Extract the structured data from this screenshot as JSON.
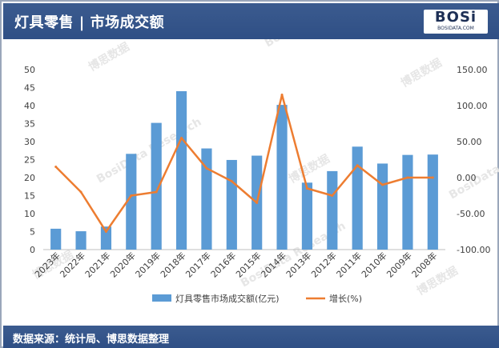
{
  "header": {
    "title": "灯具零售 | 市场成交额"
  },
  "logo": {
    "main": "BOSi",
    "sub": "BOSIDATA.COM"
  },
  "footer": {
    "source": "数据来源：统计局、博思数据整理"
  },
  "watermark": {
    "cn": "博思数据",
    "en": "BosiData Research"
  },
  "colors": {
    "bar": "#5b9bd5",
    "line": "#ed7d31",
    "header": "#2f4f85"
  },
  "chart_data": {
    "type": "bar",
    "categories": [
      "2023年",
      "2022年",
      "2021年",
      "2020年",
      "2019年",
      "2018年",
      "2017年",
      "2016年",
      "2015年",
      "2014年",
      "2013年",
      "2012年",
      "2011年",
      "2010年",
      "2009年",
      "2008年"
    ],
    "series": [
      {
        "name": "灯具零售市场成交额(亿元)",
        "type": "bar",
        "axis": "left",
        "values": [
          5.8,
          5.1,
          6.4,
          26.6,
          35.2,
          44.0,
          28.1,
          24.9,
          26.1,
          40.2,
          18.6,
          21.8,
          28.6,
          23.9,
          26.3,
          26.4
        ]
      },
      {
        "name": "增长(%)",
        "type": "line",
        "axis": "right",
        "values": [
          15,
          -20,
          -75,
          -25,
          -20,
          55,
          13,
          -5,
          -35,
          115,
          -15,
          -25,
          17,
          -10,
          0,
          0
        ]
      }
    ],
    "y_left": {
      "min": 0,
      "max": 50,
      "ticks": [
        "0",
        "5",
        "10",
        "15",
        "20",
        "25",
        "30",
        "35",
        "40",
        "45",
        "50"
      ]
    },
    "y_right": {
      "min": -100,
      "max": 150,
      "ticks": [
        "-100.00",
        "-50.00",
        "0.00",
        "50.00",
        "100.00",
        "150.00"
      ]
    },
    "legend_position": "bottom",
    "grid": false
  }
}
